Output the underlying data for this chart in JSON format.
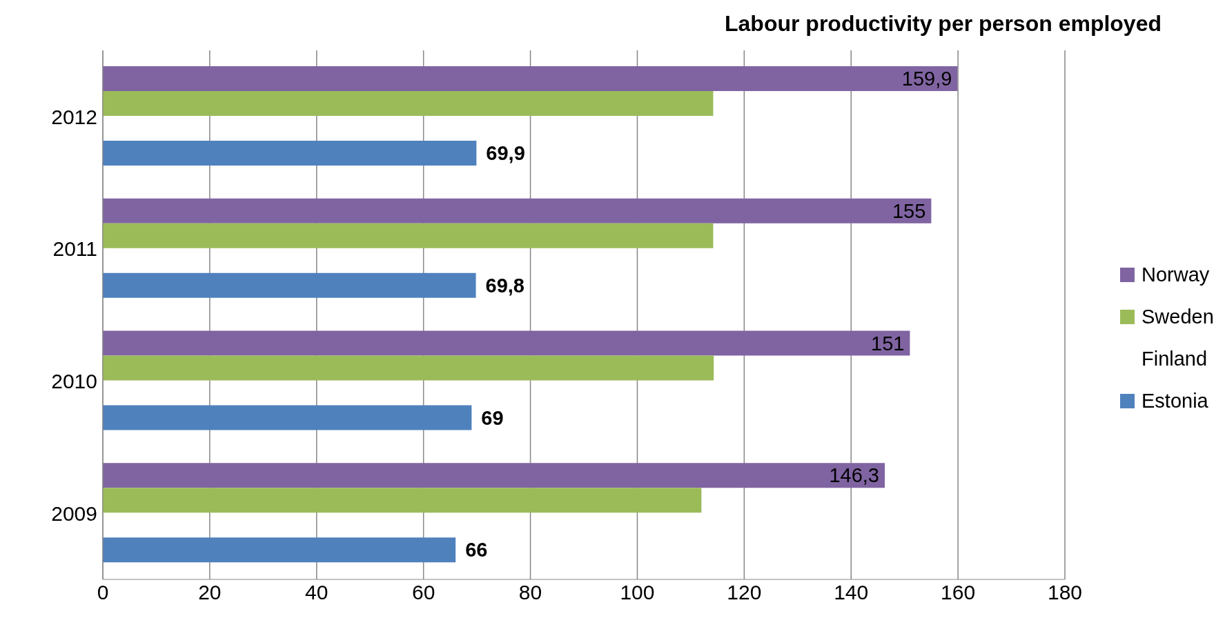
{
  "chart_data": {
    "type": "bar",
    "orientation": "horizontal",
    "title": "Labour productivity per person employed",
    "categories": [
      "2012",
      "2011",
      "2010",
      "2009"
    ],
    "series": [
      {
        "name": "Norway",
        "color": "#8064a2",
        "values": [
          159.9,
          155,
          151,
          146.3
        ],
        "value_labels": [
          "159,9",
          "155",
          "151",
          "146,3"
        ]
      },
      {
        "name": "Sweden",
        "color": "#9bbb59",
        "values": [
          114.2,
          114.2,
          114.3,
          112
        ]
      },
      {
        "name": "Finland",
        "values": [
          null,
          null,
          null,
          null
        ]
      },
      {
        "name": "Estonia",
        "color": "#4f81bd",
        "values": [
          69.9,
          69.8,
          69,
          66
        ],
        "value_labels": [
          "69,9",
          "69,8",
          "69",
          "66"
        ]
      }
    ],
    "xlim": [
      0,
      180
    ],
    "xticks": [
      0,
      20,
      40,
      60,
      80,
      100,
      120,
      140,
      160,
      180
    ],
    "grid": "x",
    "legend": "right"
  }
}
